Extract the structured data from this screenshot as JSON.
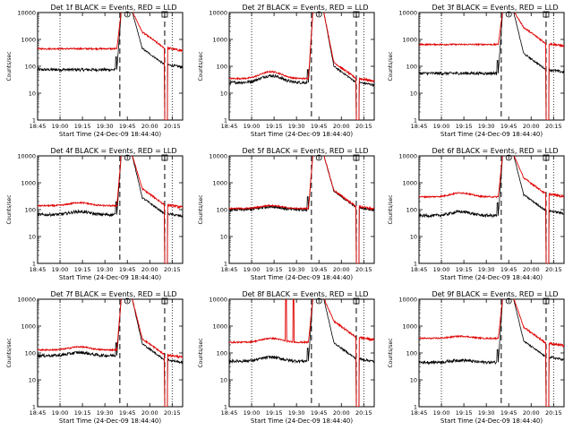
{
  "chart_data": {
    "type": "line",
    "layout": "3x3 grid",
    "x_ticks": [
      "18:45",
      "19:00",
      "19:15",
      "19:30",
      "19:45",
      "20:00",
      "20:15"
    ],
    "y_ticks": [
      "1",
      "10",
      "100",
      "1000",
      "10000"
    ],
    "x_range_min": [
      0,
      97
    ],
    "y_range": [
      1,
      10000
    ],
    "xlabel": "Start Time (24-Dec-09 18:44:40)",
    "ylabel": "Counts/sec",
    "markers": {
      "dotted_lines_min": [
        15,
        90
      ],
      "dashed_lines_min": [
        55,
        85
      ],
      "circle_at_min": 60,
      "square_at_min": 85
    },
    "panels": [
      {
        "title": "Det 1f BLACK = Events, RED = LLD",
        "black_base": 75,
        "red_base": 450,
        "black_after": 115,
        "red_after": 470,
        "hump": 1.0,
        "spikes": []
      },
      {
        "title": "Det 2f BLACK = Events, RED = LLD",
        "black_base": 25,
        "red_base": 35,
        "black_after": 25,
        "red_after": 35,
        "hump": 1.8,
        "spikes": []
      },
      {
        "title": "Det 3f BLACK = Events, RED = LLD",
        "black_base": 55,
        "red_base": 650,
        "black_after": 75,
        "red_after": 700,
        "hump": 1.0,
        "spikes": []
      },
      {
        "title": "Det 4f BLACK = Events, RED = LLD",
        "black_base": 65,
        "red_base": 140,
        "black_after": 70,
        "red_after": 150,
        "hump": 1.3,
        "spikes": []
      },
      {
        "title": "Det 5f BLACK = Events, RED = LLD",
        "black_base": 100,
        "red_base": 110,
        "black_after": 120,
        "red_after": 130,
        "hump": 1.3,
        "spikes": []
      },
      {
        "title": "Det 6f BLACK = Events, RED = LLD",
        "black_base": 60,
        "red_base": 300,
        "black_after": 90,
        "red_after": 380,
        "hump": 1.4,
        "spikes": []
      },
      {
        "title": "Det 7f BLACK = Events, RED = LLD",
        "black_base": 80,
        "red_base": 130,
        "black_after": 55,
        "red_after": 85,
        "hump": 1.3,
        "spikes": []
      },
      {
        "title": "Det 8f BLACK = Events, RED = LLD",
        "black_base": 50,
        "red_base": 250,
        "black_after": 60,
        "red_after": 380,
        "hump": 1.4,
        "spikes": [
          38,
          43
        ]
      },
      {
        "title": "Det 9f BLACK = Events, RED = LLD",
        "black_base": 45,
        "red_base": 350,
        "black_after": 70,
        "red_after": 230,
        "hump": 1.2,
        "spikes": []
      }
    ]
  }
}
